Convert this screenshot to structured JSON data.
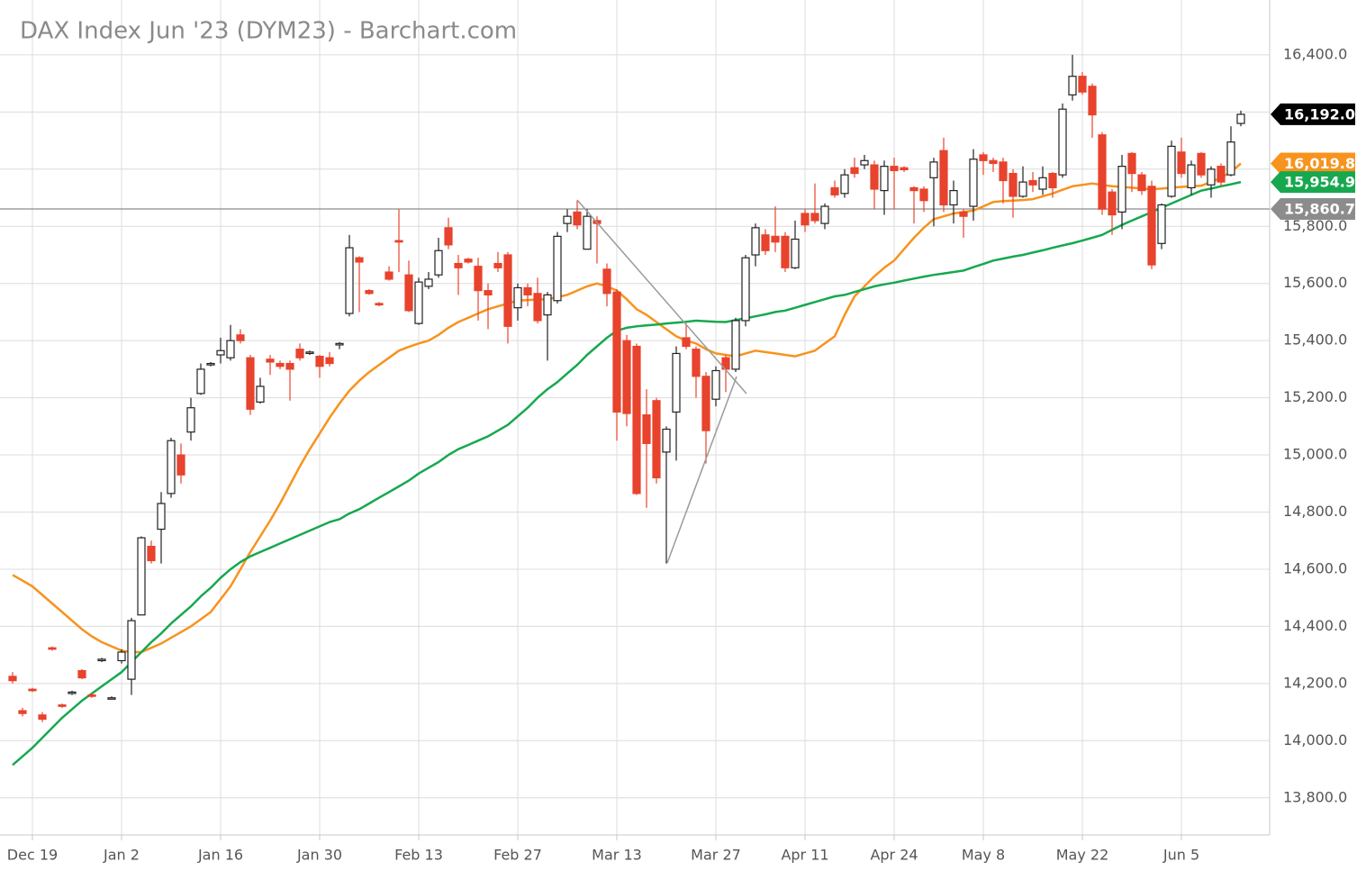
{
  "chart_data": {
    "type": "candlestick",
    "title": "DAX Index Jun '23 (DYM23) - Barchart.com",
    "categories": [
      null,
      null,
      "Dec 19",
      null,
      null,
      null,
      null,
      null,
      null,
      null,
      null,
      "Jan 2",
      null,
      null,
      null,
      null,
      null,
      null,
      null,
      null,
      null,
      "Jan 16",
      null,
      null,
      null,
      null,
      null,
      null,
      null,
      null,
      null,
      "Jan 30",
      null,
      null,
      null,
      null,
      null,
      null,
      null,
      null,
      null,
      "Feb 13",
      null,
      null,
      null,
      null,
      null,
      null,
      null,
      null,
      null,
      "Feb 27",
      null,
      null,
      null,
      null,
      null,
      null,
      null,
      null,
      null,
      "Mar 13",
      null,
      null,
      null,
      null,
      null,
      null,
      null,
      null,
      null,
      "Mar 27",
      null,
      null,
      null,
      null,
      null,
      null,
      null,
      null,
      "Apr 11",
      null,
      null,
      null,
      null,
      null,
      null,
      null,
      null,
      "Apr 24",
      null,
      null,
      null,
      null,
      null,
      null,
      null,
      null,
      "May 8",
      null,
      null,
      null,
      null,
      null,
      null,
      null,
      null,
      null,
      "May 22",
      null,
      null,
      null,
      null,
      null,
      null,
      null,
      null,
      null,
      "Jun 5",
      null,
      null,
      null,
      null,
      null,
      null
    ],
    "open": [
      14225,
      14105,
      14180,
      14090,
      14325,
      14125,
      14165,
      14245,
      14160,
      14280,
      14150,
      14280,
      14215,
      14440,
      14680,
      14740,
      14865,
      15000,
      15080,
      15215,
      15315,
      15350,
      15340,
      15420,
      15340,
      15185,
      15335,
      15320,
      15320,
      15370,
      15355,
      15345,
      15340,
      15385,
      15495,
      15690,
      15575,
      15530,
      15640,
      15750,
      15630,
      15460,
      15590,
      15630,
      15795,
      15670,
      15685,
      15660,
      15575,
      15670,
      15700,
      15515,
      15585,
      15565,
      15490,
      15540,
      15810,
      15850,
      15720,
      15820,
      15650,
      15570,
      15400,
      15380,
      15140,
      15190,
      15010,
      15150,
      15410,
      15370,
      15275,
      15195,
      15340,
      15300,
      15470,
      15700,
      15770,
      15765,
      15765,
      15655,
      15845,
      15845,
      15810,
      15935,
      15915,
      16005,
      16015,
      16015,
      15925,
      16010,
      16005,
      15935,
      15930,
      15970,
      16065,
      15875,
      15850,
      15870,
      16050,
      16030,
      16025,
      15985,
      15905,
      15960,
      15930,
      15985,
      15980,
      16260,
      16325,
      16290,
      16120,
      15920,
      15850,
      16055,
      15980,
      15940,
      15740,
      15905,
      16060,
      15935,
      16055,
      15945,
      16010,
      15980,
      16160
    ],
    "high": [
      14240,
      14115,
      14185,
      14100,
      14330,
      14130,
      14175,
      14250,
      14165,
      14290,
      14155,
      14320,
      14430,
      14715,
      14700,
      14870,
      15060,
      15040,
      15200,
      15320,
      15325,
      15410,
      15455,
      15440,
      15350,
      15270,
      15350,
      15330,
      15330,
      15390,
      15365,
      15350,
      15360,
      15395,
      15770,
      15695,
      15580,
      15535,
      15660,
      15860,
      15680,
      15620,
      15640,
      15760,
      15830,
      15700,
      15690,
      15690,
      15600,
      15710,
      15710,
      15600,
      15600,
      15620,
      15570,
      15780,
      15860,
      15890,
      15860,
      15835,
      15670,
      15580,
      15420,
      15390,
      15230,
      15200,
      15100,
      15380,
      15460,
      15380,
      15290,
      15310,
      15350,
      15480,
      15700,
      15810,
      15790,
      15870,
      15780,
      15820,
      15860,
      15950,
      15880,
      15960,
      16000,
      16040,
      16050,
      16030,
      16030,
      16040,
      16010,
      15940,
      15940,
      16040,
      16110,
      15960,
      15860,
      16070,
      16060,
      16040,
      16040,
      16000,
      16010,
      15990,
      16010,
      15990,
      16230,
      16400,
      16340,
      16300,
      16130,
      15930,
      16050,
      16060,
      15990,
      15960,
      15880,
      16100,
      16110,
      16030,
      16060,
      16010,
      16020,
      16150,
      16205
    ],
    "low": [
      14200,
      14085,
      14170,
      14065,
      14315,
      14115,
      14160,
      14215,
      14150,
      14275,
      14145,
      14270,
      14160,
      14440,
      14620,
      14620,
      14850,
      14900,
      15050,
      15210,
      15310,
      15320,
      15330,
      15390,
      15140,
      15180,
      15280,
      15300,
      15190,
      15330,
      15350,
      15270,
      15310,
      15370,
      15485,
      15500,
      15560,
      15520,
      15610,
      15640,
      15500,
      15455,
      15580,
      15620,
      15720,
      15560,
      15670,
      15470,
      15440,
      15640,
      15390,
      15470,
      15520,
      15460,
      15330,
      15530,
      15780,
      15790,
      15720,
      15670,
      15520,
      15050,
      15100,
      14860,
      14815,
      14900,
      14620,
      14980,
      15370,
      15200,
      14970,
      15170,
      15220,
      15290,
      15450,
      15660,
      15700,
      15710,
      15640,
      15650,
      15780,
      15810,
      15790,
      15900,
      15900,
      15970,
      16000,
      15860,
      15840,
      15860,
      15990,
      15810,
      15850,
      15800,
      15850,
      15810,
      15760,
      15820,
      15980,
      15990,
      15880,
      15830,
      15900,
      15920,
      15910,
      15900,
      15970,
      16240,
      16260,
      16110,
      15840,
      15770,
      15790,
      15920,
      15910,
      15650,
      15720,
      15900,
      15970,
      15910,
      15970,
      15900,
      15940,
      15975,
      16150
    ],
    "close": [
      14210,
      14095,
      14175,
      14075,
      14320,
      14120,
      14170,
      14220,
      14155,
      14285,
      14150,
      14310,
      14420,
      14710,
      14630,
      14830,
      15050,
      14930,
      15165,
      15300,
      15320,
      15365,
      15400,
      15400,
      15160,
      15240,
      15325,
      15310,
      15300,
      15340,
      15360,
      15310,
      15320,
      15390,
      15725,
      15675,
      15565,
      15525,
      15615,
      15745,
      15505,
      15605,
      15615,
      15715,
      15735,
      15655,
      15675,
      15575,
      15560,
      15655,
      15450,
      15585,
      15560,
      15470,
      15560,
      15765,
      15835,
      15805,
      15835,
      15810,
      15565,
      15150,
      15145,
      14865,
      15040,
      14920,
      15090,
      15355,
      15380,
      15275,
      15085,
      15295,
      15300,
      15470,
      15690,
      15795,
      15715,
      15745,
      15655,
      15755,
      15805,
      15820,
      15870,
      15910,
      15980,
      15985,
      16030,
      15930,
      16010,
      15995,
      15998,
      15925,
      15890,
      16025,
      15875,
      15925,
      15835,
      16035,
      16030,
      16020,
      15960,
      15905,
      15955,
      15945,
      15970,
      15935,
      16210,
      16325,
      16270,
      16190,
      15860,
      15840,
      16010,
      15985,
      15925,
      15665,
      15875,
      16080,
      15985,
      16015,
      15980,
      16000,
      15955,
      16095,
      16192
    ],
    "up_color": "#ffffff",
    "down_color": "#e8432c",
    "moving_averages": [
      {
        "color": "#f7931e",
        "values": [
          14580,
          14560,
          14540,
          14510,
          14480,
          14450,
          14420,
          14390,
          14365,
          14345,
          14330,
          14315,
          14310,
          14310,
          14325,
          14340,
          14360,
          14380,
          14400,
          14425,
          14450,
          14495,
          14540,
          14600,
          14660,
          14715,
          14770,
          14830,
          14895,
          14960,
          15020,
          15075,
          15130,
          15180,
          15225,
          15260,
          15290,
          15315,
          15340,
          15365,
          15378,
          15390,
          15400,
          15420,
          15445,
          15465,
          15480,
          15495,
          15510,
          15520,
          15530,
          15540,
          15542,
          15544,
          15545,
          15552,
          15560,
          15575,
          15590,
          15600,
          15590,
          15575,
          15545,
          15510,
          15490,
          15465,
          15440,
          15415,
          15400,
          15390,
          15370,
          15355,
          15350,
          15345,
          15355,
          15365,
          15360,
          15355,
          15350,
          15345,
          15355,
          15365,
          15390,
          15415,
          15490,
          15555,
          15590,
          15625,
          15655,
          15680,
          15720,
          15760,
          15795,
          15825,
          15835,
          15845,
          15850,
          15855,
          15870,
          15885,
          15888,
          15890,
          15892,
          15895,
          15905,
          15915,
          15928,
          15940,
          15945,
          15950,
          15945,
          15940,
          15938,
          15935,
          15932,
          15930,
          15932,
          15935,
          15938,
          15940,
          15942,
          15955,
          15970,
          15990,
          16020
        ]
      },
      {
        "color": "#17a84f",
        "values": [
          13915,
          13945,
          13975,
          14010,
          14045,
          14080,
          14110,
          14140,
          14165,
          14190,
          14215,
          14240,
          14275,
          14310,
          14345,
          14375,
          14410,
          14440,
          14470,
          14505,
          14535,
          14570,
          14600,
          14625,
          14645,
          14660,
          14675,
          14690,
          14705,
          14720,
          14735,
          14750,
          14765,
          14775,
          14795,
          14810,
          14830,
          14850,
          14870,
          14890,
          14910,
          14935,
          14955,
          14975,
          15000,
          15020,
          15035,
          15050,
          15065,
          15085,
          15105,
          15135,
          15165,
          15200,
          15230,
          15255,
          15285,
          15315,
          15350,
          15380,
          15410,
          15435,
          15445,
          15450,
          15453,
          15456,
          15460,
          15463,
          15466,
          15470,
          15468,
          15466,
          15465,
          15472,
          15478,
          15485,
          15492,
          15500,
          15505,
          15515,
          15525,
          15535,
          15545,
          15555,
          15560,
          15570,
          15580,
          15590,
          15597,
          15603,
          15610,
          15617,
          15624,
          15630,
          15635,
          15640,
          15645,
          15657,
          15668,
          15680,
          15687,
          15694,
          15700,
          15708,
          15716,
          15725,
          15733,
          15741,
          15750,
          15760,
          15770,
          15788,
          15805,
          15820,
          15835,
          15850,
          15865,
          15880,
          15895,
          15910,
          15925,
          15932,
          15940,
          15947,
          15955
        ]
      }
    ],
    "price_labels": [
      {
        "value": 16192,
        "label": "16,192.0",
        "color": "#000000"
      },
      {
        "value": 16019.8,
        "label": "16,019.8",
        "color": "#f7931e"
      },
      {
        "value": 15954.9,
        "label": "15,954.9",
        "color": "#17a84f"
      },
      {
        "value": 15860.7,
        "label": "15,860.7",
        "color": "#8c8c8c"
      }
    ],
    "reference_line": 15860.7,
    "ylim": [
      13670,
      16592
    ],
    "yticks": [
      {
        "value": 13800,
        "label": "13,800.0"
      },
      {
        "value": 14000,
        "label": "14,000.0"
      },
      {
        "value": 14200,
        "label": "14,200.0"
      },
      {
        "value": 14400,
        "label": "14,400.0"
      },
      {
        "value": 14600,
        "label": "14,600.0"
      },
      {
        "value": 14800,
        "label": "14,800.0"
      },
      {
        "value": 15000,
        "label": "15,000.0"
      },
      {
        "value": 15200,
        "label": "15,200.0"
      },
      {
        "value": 15400,
        "label": "15,400.0"
      },
      {
        "value": 15600,
        "label": "15,600.0"
      },
      {
        "value": 15800,
        "label": "15,800.0"
      },
      {
        "value": 16000,
        "label": "16,000.0"
      },
      {
        "value": 16200,
        "label": "16,200.0"
      },
      {
        "value": 16400,
        "label": "16,400.0"
      }
    ],
    "grid": true
  }
}
